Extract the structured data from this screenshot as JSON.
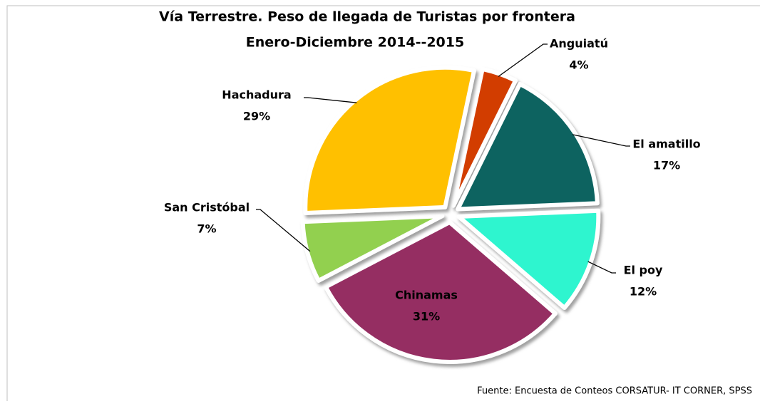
{
  "chart_data": {
    "type": "pie",
    "title": "Vía Terrestre. Peso de llegada de Turistas por frontera",
    "subtitle": "Enero-Diciembre 2014--2015",
    "source": "Fuente: Encuesta de Conteos CORSATUR- IT CORNER, SPSS",
    "categories": [
      "Anguiatú",
      "El amatillo",
      "El poy",
      "Chinamas",
      "San Cristóbal",
      "Hachadura"
    ],
    "values": [
      4,
      17,
      12,
      31,
      7,
      29
    ],
    "value_labels": [
      "4%",
      "17%",
      "12%",
      "31%",
      "7%",
      "29%"
    ],
    "colors": [
      "#d23c05",
      "#0b6461",
      "#2ef5cf",
      "#952f62",
      "#92d050",
      "#ffc000"
    ]
  }
}
